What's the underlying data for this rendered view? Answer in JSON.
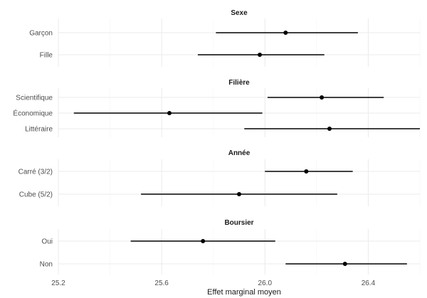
{
  "chart_data": {
    "type": "dot-and-whisker",
    "xlabel": "Effet marginal moyen",
    "xlim": [
      25.2,
      26.6
    ],
    "xticks": [
      25.2,
      25.6,
      26.0,
      26.4
    ],
    "xtick_labels": [
      "25.2",
      "25.6",
      "26.0",
      "26.4"
    ],
    "grid": true,
    "facets": [
      {
        "title": "Sexe",
        "items": [
          {
            "label": "Garçon",
            "estimate": 26.08,
            "low": 25.81,
            "high": 26.36
          },
          {
            "label": "Fille",
            "estimate": 25.98,
            "low": 25.74,
            "high": 26.23
          }
        ]
      },
      {
        "title": "Filière",
        "items": [
          {
            "label": "Scientifique",
            "estimate": 26.22,
            "low": 26.01,
            "high": 26.46
          },
          {
            "label": "Économique",
            "estimate": 25.63,
            "low": 25.26,
            "high": 25.99
          },
          {
            "label": "Littéraire",
            "estimate": 26.25,
            "low": 25.92,
            "high": 26.6
          }
        ]
      },
      {
        "title": "Année",
        "items": [
          {
            "label": "Carré (3/2)",
            "estimate": 26.16,
            "low": 26.0,
            "high": 26.34
          },
          {
            "label": "Cube (5/2)",
            "estimate": 25.9,
            "low": 25.52,
            "high": 26.28
          }
        ]
      },
      {
        "title": "Boursier",
        "items": [
          {
            "label": "Oui",
            "estimate": 25.76,
            "low": 25.48,
            "high": 26.04
          },
          {
            "label": "Non",
            "estimate": 26.31,
            "low": 26.08,
            "high": 26.55
          }
        ]
      }
    ]
  }
}
